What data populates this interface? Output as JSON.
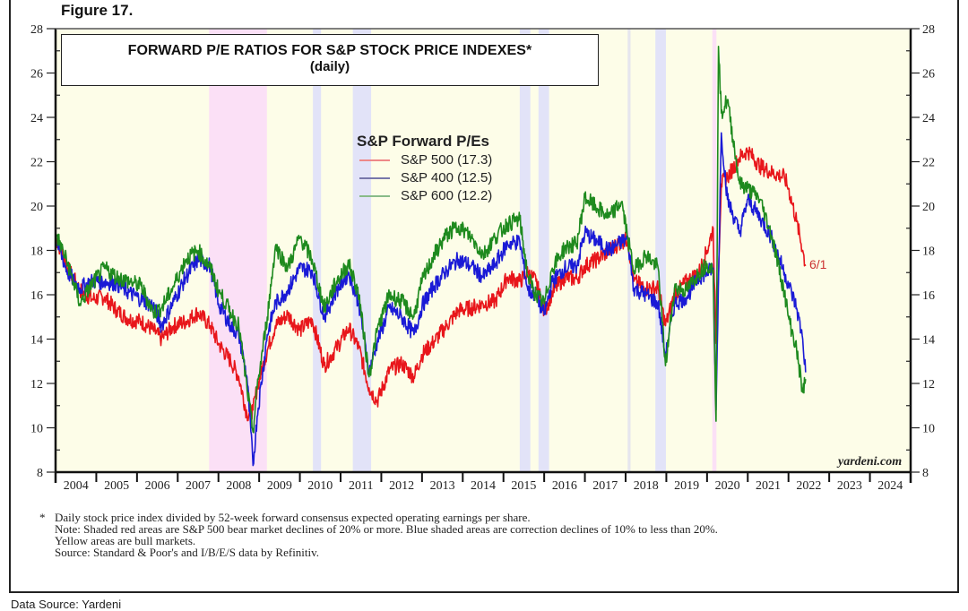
{
  "figure_label": "Figure 17.",
  "title_line1": "FORWARD P/E RATIOS FOR S&P STOCK PRICE INDEXES*",
  "title_line2": "(daily)",
  "legend": {
    "title": "S&P Forward P/Es",
    "items": [
      {
        "label": "S&P 500 (17.3)",
        "color": "#e8161b"
      },
      {
        "label": "S&P 400 (12.5)",
        "color": "#1a1ad6"
      },
      {
        "label": "S&P 600 (12.2)",
        "color": "#1e8a1e"
      }
    ]
  },
  "end_marker": "6/1",
  "watermark": "yardeni.com",
  "notes": {
    "star": "*",
    "lines": [
      "Daily stock price index divided by 52-week forward consensus expected operating earnings per share.",
      "Note: Shaded red areas are S&P 500 bear market declines of 20% or more.  Blue shaded areas are correction declines of 10% to less than 20%.",
      "Yellow areas are bull markets.",
      "Source: Standard & Poor's and I/B/E/S data by Refinitiv."
    ]
  },
  "data_source": "Data Source: Yardeni",
  "chart_data": {
    "type": "line",
    "title": "FORWARD P/E RATIOS FOR S&P STOCK PRICE INDEXES* (daily)",
    "xlabel": "",
    "ylabel": "",
    "xlim": [
      2004,
      2025
    ],
    "ylim": [
      8,
      28
    ],
    "yticks": [
      8,
      10,
      12,
      14,
      16,
      18,
      20,
      22,
      24,
      26,
      28
    ],
    "xtick_labels": [
      "2004",
      "2005",
      "2006",
      "2007",
      "2008",
      "2009",
      "2010",
      "2011",
      "2012",
      "2013",
      "2014",
      "2015",
      "2016",
      "2017",
      "2018",
      "2019",
      "2020",
      "2021",
      "2022",
      "2023",
      "2024"
    ],
    "y_axis_both_sides": true,
    "legend_position": "top-center",
    "shaded_regions": [
      {
        "type": "bear",
        "from": 2007.77,
        "to": 2009.19,
        "color": "#fbe0f6"
      },
      {
        "type": "correction",
        "from": 2010.32,
        "to": 2010.52,
        "color": "#e2e3f8"
      },
      {
        "type": "correction",
        "from": 2011.3,
        "to": 2011.75,
        "color": "#e2e3f8"
      },
      {
        "type": "correction",
        "from": 2015.4,
        "to": 2015.66,
        "color": "#e2e3f8"
      },
      {
        "type": "correction",
        "from": 2015.86,
        "to": 2016.12,
        "color": "#e2e3f8"
      },
      {
        "type": "correction",
        "from": 2018.05,
        "to": 2018.12,
        "color": "#e6e6ee"
      },
      {
        "type": "correction",
        "from": 2018.73,
        "to": 2018.99,
        "color": "#e2e3f8"
      },
      {
        "type": "bear",
        "from": 2020.13,
        "to": 2020.23,
        "color": "#fbe0f6"
      }
    ],
    "bull_color": "#fdfde8",
    "series": [
      {
        "name": "S&P 500 (17.3)",
        "color": "#e8161b",
        "x": [
          2004.0,
          2004.3,
          2004.6,
          2004.9,
          2005.2,
          2005.5,
          2005.8,
          2006.1,
          2006.4,
          2006.6,
          2006.9,
          2007.2,
          2007.5,
          2007.8,
          2008.0,
          2008.3,
          2008.5,
          2008.7,
          2008.85,
          2008.95,
          2009.2,
          2009.4,
          2009.7,
          2010.0,
          2010.3,
          2010.6,
          2010.9,
          2011.2,
          2011.45,
          2011.7,
          2011.9,
          2012.2,
          2012.5,
          2012.8,
          2013.0,
          2013.3,
          2013.6,
          2013.9,
          2014.2,
          2014.5,
          2014.8,
          2015.1,
          2015.4,
          2015.6,
          2015.8,
          2016.0,
          2016.2,
          2016.5,
          2016.8,
          2017.0,
          2017.3,
          2017.6,
          2017.9,
          2018.05,
          2018.2,
          2018.5,
          2018.8,
          2018.98,
          2019.2,
          2019.5,
          2019.8,
          2020.0,
          2020.15,
          2020.22,
          2020.35,
          2020.5,
          2020.8,
          2021.0,
          2021.3,
          2021.6,
          2021.9,
          2022.0,
          2022.2,
          2022.35,
          2022.42
        ],
        "values": [
          18.6,
          17.2,
          16.2,
          15.8,
          15.9,
          15.3,
          14.9,
          14.8,
          14.4,
          14.0,
          14.6,
          14.8,
          15.2,
          14.6,
          13.8,
          13.0,
          12.3,
          10.6,
          10.8,
          11.8,
          13.5,
          14.6,
          15.1,
          14.4,
          14.9,
          12.8,
          13.6,
          14.5,
          13.6,
          11.8,
          11.2,
          12.6,
          12.9,
          12.3,
          13.3,
          13.9,
          14.6,
          15.3,
          15.4,
          15.6,
          15.7,
          16.8,
          16.6,
          17.0,
          16.6,
          15.2,
          16.1,
          16.8,
          16.7,
          17.3,
          17.6,
          18.0,
          18.4,
          18.5,
          16.6,
          16.3,
          16.3,
          14.6,
          16.0,
          16.6,
          17.0,
          18.0,
          19.0,
          13.8,
          21.0,
          21.3,
          22.2,
          22.5,
          21.8,
          21.5,
          21.3,
          20.8,
          19.3,
          18.0,
          17.3
        ]
      },
      {
        "name": "S&P 400 (12.5)",
        "color": "#1a1ad6",
        "x": [
          2004.0,
          2004.3,
          2004.6,
          2004.9,
          2005.2,
          2005.5,
          2005.8,
          2006.1,
          2006.4,
          2006.6,
          2006.9,
          2007.2,
          2007.5,
          2007.8,
          2008.0,
          2008.3,
          2008.5,
          2008.7,
          2008.85,
          2008.95,
          2009.2,
          2009.4,
          2009.7,
          2010.0,
          2010.3,
          2010.6,
          2010.9,
          2011.2,
          2011.45,
          2011.7,
          2011.9,
          2012.2,
          2012.5,
          2012.8,
          2013.0,
          2013.3,
          2013.6,
          2013.9,
          2014.2,
          2014.5,
          2014.8,
          2015.1,
          2015.4,
          2015.6,
          2015.8,
          2016.0,
          2016.2,
          2016.5,
          2016.8,
          2017.0,
          2017.3,
          2017.6,
          2017.9,
          2018.05,
          2018.2,
          2018.5,
          2018.8,
          2018.98,
          2019.2,
          2019.5,
          2019.8,
          2020.0,
          2020.15,
          2020.22,
          2020.35,
          2020.5,
          2020.8,
          2021.0,
          2021.3,
          2021.6,
          2021.9,
          2022.0,
          2022.2,
          2022.35,
          2022.42
        ],
        "values": [
          18.5,
          17.0,
          16.3,
          16.6,
          16.6,
          16.5,
          16.1,
          15.8,
          15.5,
          14.6,
          15.7,
          16.8,
          17.6,
          17.3,
          15.6,
          14.6,
          14.2,
          12.3,
          8.3,
          10.5,
          14.2,
          15.6,
          16.2,
          17.2,
          17.1,
          15.0,
          16.2,
          17.0,
          15.6,
          12.5,
          13.9,
          15.4,
          15.0,
          14.2,
          15.5,
          16.4,
          17.1,
          17.6,
          17.3,
          16.8,
          17.4,
          18.3,
          18.4,
          16.2,
          16.0,
          15.1,
          16.6,
          17.2,
          17.3,
          18.8,
          18.4,
          18.0,
          18.4,
          18.5,
          16.3,
          16.0,
          15.6,
          13.2,
          15.6,
          15.9,
          16.8,
          17.0,
          17.2,
          10.8,
          23.3,
          20.3,
          18.8,
          20.3,
          19.5,
          18.5,
          17.0,
          16.5,
          15.4,
          14.0,
          12.5
        ]
      },
      {
        "name": "S&P 600 (12.2)",
        "color": "#1e8a1e",
        "x": [
          2004.0,
          2004.3,
          2004.6,
          2004.9,
          2005.2,
          2005.5,
          2005.8,
          2006.1,
          2006.4,
          2006.6,
          2006.9,
          2007.2,
          2007.5,
          2007.8,
          2008.0,
          2008.3,
          2008.5,
          2008.7,
          2008.85,
          2008.95,
          2009.2,
          2009.4,
          2009.7,
          2010.0,
          2010.3,
          2010.6,
          2010.9,
          2011.2,
          2011.45,
          2011.7,
          2011.9,
          2012.2,
          2012.5,
          2012.8,
          2013.0,
          2013.3,
          2013.6,
          2013.9,
          2014.2,
          2014.5,
          2014.8,
          2015.1,
          2015.4,
          2015.6,
          2015.8,
          2016.0,
          2016.2,
          2016.5,
          2016.8,
          2017.0,
          2017.3,
          2017.6,
          2017.9,
          2018.05,
          2018.2,
          2018.5,
          2018.8,
          2018.98,
          2019.2,
          2019.5,
          2019.8,
          2020.0,
          2020.15,
          2020.22,
          2020.28,
          2020.35,
          2020.5,
          2020.8,
          2021.0,
          2021.3,
          2021.6,
          2021.9,
          2022.0,
          2022.2,
          2022.35,
          2022.42
        ],
        "values": [
          18.8,
          17.4,
          15.6,
          16.5,
          17.2,
          16.8,
          16.6,
          16.4,
          15.2,
          15.4,
          16.4,
          17.6,
          18.0,
          17.2,
          16.2,
          15.2,
          14.6,
          11.8,
          9.8,
          11.8,
          15.0,
          18.2,
          17.2,
          18.6,
          17.6,
          15.4,
          16.6,
          17.4,
          16.0,
          12.3,
          14.4,
          16.0,
          15.7,
          15.0,
          16.6,
          17.8,
          18.7,
          19.1,
          18.6,
          17.8,
          18.6,
          19.2,
          19.4,
          16.8,
          16.0,
          15.6,
          17.2,
          18.1,
          18.3,
          20.4,
          19.9,
          19.5,
          20.2,
          18.6,
          17.1,
          17.8,
          17.2,
          12.8,
          16.3,
          16.2,
          17.0,
          17.4,
          17.1,
          10.3,
          27.2,
          24.2,
          24.8,
          21.0,
          20.8,
          20.3,
          18.6,
          16.1,
          15.0,
          13.5,
          11.6,
          12.2
        ]
      }
    ]
  }
}
